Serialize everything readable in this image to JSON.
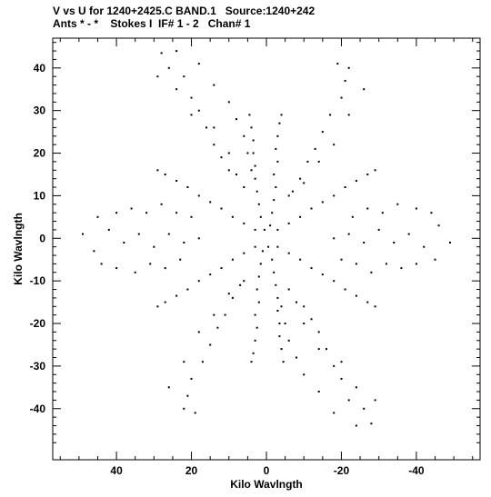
{
  "header": {
    "line1": "V vs U for 1240+2425.C BAND.1   Source:1240+242",
    "line2": "Ants * - *    Stokes I  IF# 1 - 2   Chan# 1"
  },
  "chart_data": {
    "type": "scatter",
    "title": "V vs U for 1240+2425.C BAND.1   Source:1240+242",
    "subtitle": "Ants * - *    Stokes I  IF# 1 - 2   Chan# 1",
    "xlabel": "Kilo Wavlngth",
    "ylabel": "Kilo Wavlngth",
    "xlim": [
      57,
      -57
    ],
    "ylim": [
      -52,
      47
    ],
    "x_reversed": true,
    "grid": false,
    "xticks": [
      40,
      20,
      0,
      -20,
      -40
    ],
    "xtick_labels": [
      "40",
      "20",
      "0",
      "-20",
      "-40"
    ],
    "yticks": [
      40,
      30,
      20,
      10,
      0,
      -10,
      -20,
      -30,
      -40
    ],
    "ytick_labels": [
      "40",
      "30",
      "20",
      "10",
      "0",
      "-10",
      "-20",
      "-30",
      "-40"
    ],
    "series": [
      {
        "description": "uv-coverage points; six-armed snowflake pattern with arms along position angles 0, 60, 120, 180, 240, 300 degrees, max baseline ~46 kilo-wavelengths; point-symmetric (each (u,v) has a (-u,-v) twin)",
        "points": [
          [
            0.5,
            2
          ],
          [
            1.5,
            5
          ],
          [
            2,
            8
          ],
          [
            2.5,
            11
          ],
          [
            3,
            14
          ],
          [
            3,
            17
          ],
          [
            3.5,
            20
          ],
          [
            3.5,
            23
          ],
          [
            4,
            26
          ],
          [
            4.5,
            29
          ],
          [
            -0.5,
            -2
          ],
          [
            -1.5,
            -5
          ],
          [
            -2,
            -8
          ],
          [
            -2.5,
            -11
          ],
          [
            -3,
            -14
          ],
          [
            -3,
            -17
          ],
          [
            -3.5,
            -20
          ],
          [
            -3.5,
            -23
          ],
          [
            -4,
            -26
          ],
          [
            -4.5,
            -29
          ],
          [
            -1,
            3
          ],
          [
            -1.5,
            6
          ],
          [
            -2,
            9
          ],
          [
            -2.5,
            12
          ],
          [
            -2,
            15
          ],
          [
            -3,
            18
          ],
          [
            -2.5,
            21
          ],
          [
            -3,
            24
          ],
          [
            -3.5,
            27
          ],
          [
            -4,
            29
          ],
          [
            1,
            -3
          ],
          [
            1.5,
            -6
          ],
          [
            2,
            -9
          ],
          [
            2.5,
            -12
          ],
          [
            2,
            -15
          ],
          [
            3,
            -18
          ],
          [
            2.5,
            -21
          ],
          [
            3,
            -24
          ],
          [
            3.5,
            -27
          ],
          [
            4,
            -29
          ],
          [
            3,
            2
          ],
          [
            6,
            3.5
          ],
          [
            9,
            5
          ],
          [
            12,
            7
          ],
          [
            15,
            8.5
          ],
          [
            18,
            10
          ],
          [
            21,
            12
          ],
          [
            24,
            13.5
          ],
          [
            27,
            15
          ],
          [
            29,
            16
          ],
          [
            -3,
            -2
          ],
          [
            -6,
            -3.5
          ],
          [
            -9,
            -5
          ],
          [
            -12,
            -7
          ],
          [
            -15,
            -8.5
          ],
          [
            -18,
            -10
          ],
          [
            -21,
            -12
          ],
          [
            -24,
            -13.5
          ],
          [
            -27,
            -15
          ],
          [
            -29,
            -16
          ],
          [
            -3,
            2
          ],
          [
            -6,
            3.5
          ],
          [
            -9,
            5
          ],
          [
            -12,
            7
          ],
          [
            -15,
            8.5
          ],
          [
            -18,
            10
          ],
          [
            -21,
            12
          ],
          [
            -24,
            13.5
          ],
          [
            -27,
            15
          ],
          [
            -29,
            16
          ],
          [
            3,
            -2
          ],
          [
            6,
            -3.5
          ],
          [
            9,
            -5
          ],
          [
            12,
            -7
          ],
          [
            15,
            -8.5
          ],
          [
            18,
            -10
          ],
          [
            21,
            -12
          ],
          [
            24,
            -13.5
          ],
          [
            27,
            -15
          ],
          [
            29,
            -16
          ],
          [
            28,
            43.5
          ],
          [
            26,
            40
          ],
          [
            22,
            38
          ],
          [
            20,
            33
          ],
          [
            18,
            30
          ],
          [
            16,
            26
          ],
          [
            14,
            22
          ],
          [
            12,
            19
          ],
          [
            10,
            16
          ],
          [
            -28,
            -43.5
          ],
          [
            -26,
            -40
          ],
          [
            -22,
            -38
          ],
          [
            -20,
            -33
          ],
          [
            -18,
            -30
          ],
          [
            -16,
            -26
          ],
          [
            -14,
            -22
          ],
          [
            -12,
            -19
          ],
          [
            -10,
            -16
          ],
          [
            -19,
            41
          ],
          [
            -21,
            37
          ],
          [
            -20,
            33
          ],
          [
            -17,
            29
          ],
          [
            -15,
            25
          ],
          [
            -13,
            21
          ],
          [
            -11,
            18
          ],
          [
            -9,
            14
          ],
          [
            -7,
            11
          ],
          [
            19,
            -41
          ],
          [
            21,
            -37
          ],
          [
            20,
            -33
          ],
          [
            17,
            -29
          ],
          [
            15,
            -25
          ],
          [
            13,
            -21
          ],
          [
            11,
            -18
          ],
          [
            9,
            -14
          ],
          [
            7,
            -11
          ],
          [
            49,
            1
          ],
          [
            46,
            -3
          ],
          [
            42,
            2
          ],
          [
            38,
            -1
          ],
          [
            34,
            1
          ],
          [
            30,
            -2
          ],
          [
            26,
            1
          ],
          [
            22,
            -1
          ],
          [
            18,
            0
          ],
          [
            -49,
            -1
          ],
          [
            -46,
            3
          ],
          [
            -42,
            -2
          ],
          [
            -38,
            1
          ],
          [
            -34,
            -1
          ],
          [
            -30,
            2
          ],
          [
            -26,
            -1
          ],
          [
            -22,
            1
          ],
          [
            -18,
            0
          ],
          [
            -24,
            -44
          ],
          [
            -18,
            -41
          ],
          [
            -14,
            -36
          ],
          [
            -10,
            -32
          ],
          [
            -8,
            -28
          ],
          [
            -6,
            -24
          ],
          [
            -5,
            -20
          ],
          [
            -4,
            -16
          ],
          [
            24,
            44
          ],
          [
            18,
            41
          ],
          [
            14,
            36
          ],
          [
            10,
            32
          ],
          [
            8,
            28
          ],
          [
            6,
            24
          ],
          [
            5,
            20
          ],
          [
            4,
            16
          ],
          [
            29,
            38
          ],
          [
            24,
            35
          ],
          [
            20,
            29
          ],
          [
            14,
            26
          ],
          [
            10,
            20
          ],
          [
            8,
            15
          ],
          [
            6,
            12
          ],
          [
            -29,
            -38
          ],
          [
            -24,
            -35
          ],
          [
            -20,
            -29
          ],
          [
            -14,
            -26
          ],
          [
            -10,
            -20
          ],
          [
            -8,
            -15
          ],
          [
            -6,
            -12
          ],
          [
            -22,
            40
          ],
          [
            -26,
            35
          ],
          [
            -22,
            29
          ],
          [
            -18,
            22
          ],
          [
            -14,
            18
          ],
          [
            -10,
            13
          ],
          [
            -6,
            10
          ],
          [
            22,
            -40
          ],
          [
            26,
            -35
          ],
          [
            22,
            -29
          ],
          [
            18,
            -22
          ],
          [
            14,
            -18
          ],
          [
            10,
            -13
          ],
          [
            6,
            -10
          ],
          [
            45,
            5
          ],
          [
            40,
            6
          ],
          [
            36,
            7
          ],
          [
            32,
            6
          ],
          [
            28,
            8
          ],
          [
            24,
            6
          ],
          [
            20,
            5
          ],
          [
            -45,
            -5
          ],
          [
            -40,
            -6
          ],
          [
            -36,
            -7
          ],
          [
            -32,
            -6
          ],
          [
            -28,
            -8
          ],
          [
            -24,
            -6
          ],
          [
            -20,
            -5
          ],
          [
            44,
            -6
          ],
          [
            40,
            -7
          ],
          [
            35,
            -8
          ],
          [
            31,
            -6
          ],
          [
            27,
            -7
          ],
          [
            23,
            -5
          ],
          [
            -44,
            6
          ],
          [
            -40,
            7
          ],
          [
            -35,
            8
          ],
          [
            -31,
            6
          ],
          [
            -27,
            7
          ],
          [
            -23,
            5
          ]
        ]
      }
    ]
  }
}
